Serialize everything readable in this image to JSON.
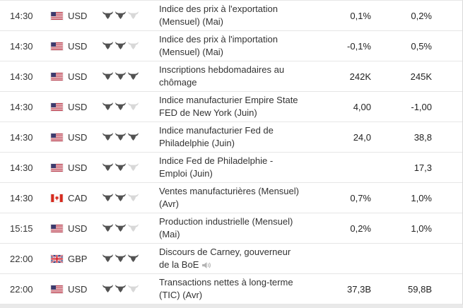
{
  "colors": {
    "background": "#ffffff",
    "page_background": "#e9e9e9",
    "row_border": "#e6e6e6",
    "text": "#333333",
    "bull_filled": "#525252",
    "bull_empty": "#d8d8d8",
    "flag_us_red": "#b22234",
    "flag_us_blue": "#3c3b6e",
    "flag_ca_red": "#d52b1e",
    "flag_gb_blue": "#29367c",
    "flag_gb_red": "#d0232e"
  },
  "icons": {
    "importance": "bull-icon",
    "speech": "speaker-icon",
    "flags": [
      "us-flag-icon",
      "ca-flag-icon",
      "gb-flag-icon"
    ]
  },
  "table": {
    "rows": [
      {
        "time": "14:30",
        "currency": "USD",
        "flag": "us",
        "importance": 2,
        "event": "Indice des prix à l'exportation (Mensuel) (Mai)",
        "forecast": "0,1%",
        "previous": "0,2%",
        "speaker": false
      },
      {
        "time": "14:30",
        "currency": "USD",
        "flag": "us",
        "importance": 2,
        "event": "Indice des prix à l'importation (Mensuel) (Mai)",
        "forecast": "-0,1%",
        "previous": "0,5%",
        "speaker": false
      },
      {
        "time": "14:30",
        "currency": "USD",
        "flag": "us",
        "importance": 3,
        "event": "Inscriptions hebdomadaires au chômage",
        "forecast": "242K",
        "previous": "245K",
        "speaker": false
      },
      {
        "time": "14:30",
        "currency": "USD",
        "flag": "us",
        "importance": 2,
        "event": "Indice manufacturier Empire State FED de New York (Juin)",
        "forecast": "4,00",
        "previous": "-1,00",
        "speaker": false
      },
      {
        "time": "14:30",
        "currency": "USD",
        "flag": "us",
        "importance": 3,
        "event": "Indice manufacturier Fed de Philadelphie (Juin)",
        "forecast": "24,0",
        "previous": "38,8",
        "speaker": false
      },
      {
        "time": "14:30",
        "currency": "USD",
        "flag": "us",
        "importance": 2,
        "event": "Indice Fed de Philadelphie - Emploi (Juin)",
        "forecast": "",
        "previous": "17,3",
        "speaker": false
      },
      {
        "time": "14:30",
        "currency": "CAD",
        "flag": "ca",
        "importance": 2,
        "event": "Ventes manufacturières (Mensuel) (Avr)",
        "forecast": "0,7%",
        "previous": "1,0%",
        "speaker": false
      },
      {
        "time": "15:15",
        "currency": "USD",
        "flag": "us",
        "importance": 2,
        "event": "Production industrielle (Mensuel) (Mai)",
        "forecast": "0,2%",
        "previous": "1,0%",
        "speaker": false
      },
      {
        "time": "22:00",
        "currency": "GBP",
        "flag": "gb",
        "importance": 3,
        "event": "Discours de Carney, gouverneur de la BoE",
        "forecast": "",
        "previous": "",
        "speaker": true
      },
      {
        "time": "22:00",
        "currency": "USD",
        "flag": "us",
        "importance": 2,
        "event": "Transactions nettes à long-terme (TIC) (Avr)",
        "forecast": "37,3B",
        "previous": "59,8B",
        "speaker": false
      }
    ]
  }
}
